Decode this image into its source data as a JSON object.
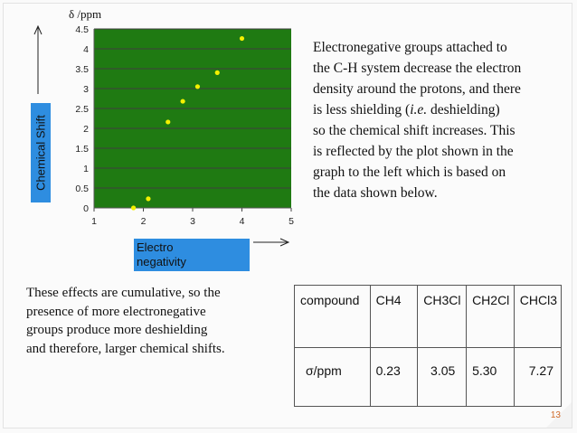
{
  "chart_data": {
    "type": "scatter",
    "title": "",
    "ylabel": "δ /ppm",
    "xlabel": "Electro negativity",
    "xlim": [
      1,
      5
    ],
    "ylim": [
      0,
      4.5
    ],
    "x_ticks": [
      "1",
      "2",
      "3",
      "4",
      "5"
    ],
    "y_ticks": [
      "0",
      "0.5",
      "1",
      "1.5",
      "2",
      "2.5",
      "3",
      "3.5",
      "4",
      "4.5"
    ],
    "grid": true,
    "plot_background": "#1f7a12",
    "point_color": "#f4f000",
    "series": [
      {
        "x": [
          1.8,
          2.1,
          2.5,
          2.8,
          3.1,
          3.5,
          4.0
        ],
        "y": [
          0.0,
          0.23,
          2.16,
          2.68,
          3.05,
          3.4,
          4.26
        ]
      }
    ]
  },
  "axis_labels": {
    "y_box": "Chemical Shift",
    "x_box_line1": "Electro",
    "x_box_line2": "negativity"
  },
  "right_paragraph": {
    "l1": "Electronegative groups attached to",
    "l2": "the C-H system decrease the electron",
    "l3": "density around the protons, and there",
    "l4_pre": " is less shielding (",
    "l4_em": "i.e.",
    "l4_post": " deshielding)",
    "l5": "so the chemical shift increases. This",
    "l6": "is reflected by the plot shown in the",
    "l7": "graph to the left which is based on",
    "l8": "the data shown below."
  },
  "left_paragraph": {
    "l1": "These effects are cumulative, so the",
    "l2": "presence of  more electronegative",
    "l3": "groups produce more deshielding",
    "l4": "and therefore, larger chemical shifts."
  },
  "table": {
    "header": [
      "compound",
      "CH4",
      "CH3Cl",
      "CH2Cl",
      "CHCl3"
    ],
    "row_label": "σ/ppm",
    "values": [
      "0.23",
      "3.05",
      "5.30",
      "7.27"
    ]
  },
  "page_number": "13"
}
